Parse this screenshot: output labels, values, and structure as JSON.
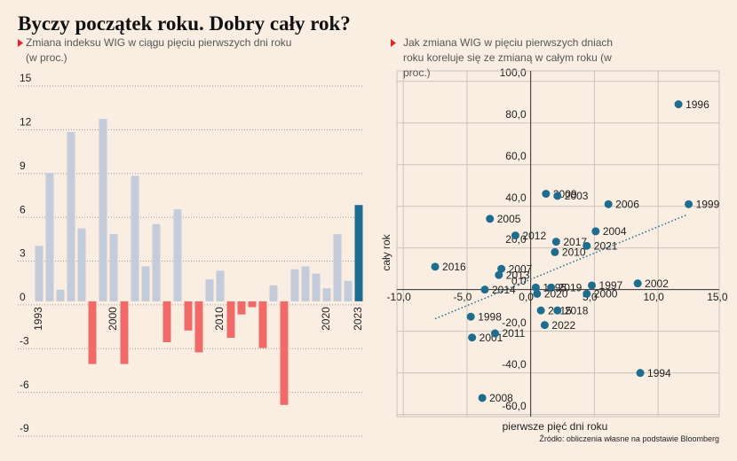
{
  "title": "Byczy początek roku. Dobry cały rok?",
  "source": "Źródło: obliczenia własne na podstawie Bloomberg",
  "chart_data": [
    {
      "type": "bar",
      "subtitle": "Zmiana indeksu WIG w ciągu pięciu pierwszych dni roku (w proc.)",
      "categories": [
        "1993",
        null,
        null,
        null,
        null,
        null,
        null,
        "2000",
        null,
        null,
        null,
        null,
        null,
        null,
        null,
        null,
        null,
        "2010",
        null,
        null,
        null,
        null,
        null,
        null,
        null,
        null,
        null,
        "2020",
        null,
        null,
        "2023"
      ],
      "values": [
        3.8,
        8.8,
        0.8,
        11.6,
        5.0,
        -4.3,
        12.5,
        4.6,
        -4.3,
        8.6,
        2.4,
        5.3,
        -2.8,
        6.3,
        -2.0,
        -3.5,
        1.5,
        2.1,
        -2.5,
        -0.9,
        -0.4,
        -3.2,
        1.1,
        -7.1,
        2.2,
        2.4,
        1.9,
        0.9,
        4.6,
        1.4,
        6.6
      ],
      "colors": [
        "#c4cbda",
        "#c4cbda",
        "#c4cbda",
        "#c4cbda",
        "#c4cbda",
        "#f06a68",
        "#c4cbda",
        "#c4cbda",
        "#f06a68",
        "#c4cbda",
        "#c4cbda",
        "#c4cbda",
        "#f06a68",
        "#c4cbda",
        "#f06a68",
        "#f06a68",
        "#c4cbda",
        "#c4cbda",
        "#f06a68",
        "#f06a68",
        "#f06a68",
        "#f06a68",
        "#c4cbda",
        "#f06a68",
        "#c4cbda",
        "#c4cbda",
        "#c4cbda",
        "#c4cbda",
        "#c4cbda",
        "#c4cbda",
        "#1d6d8f"
      ],
      "ylim": [
        -9,
        15
      ],
      "yticks": [
        15,
        12,
        9,
        6,
        3,
        0,
        -3,
        -6,
        -9
      ],
      "grid": true
    },
    {
      "type": "scatter",
      "subtitle": "Jak zmiana WIG w pięciu pierwszych dniach roku koreluje się ze zmianą w całym roku (w proc.)",
      "x_label": "pierwsze pięć dni roku",
      "y_label": "cały rok",
      "labels": [
        "1996",
        "1999",
        "2009",
        "2003",
        "2006",
        "2005",
        "2012",
        "2004",
        "2017",
        "2021",
        "2010",
        "2016",
        "2007",
        "2013",
        "1995",
        "2019",
        "1997",
        "2002",
        "2014",
        "2020",
        "2000",
        "1998",
        "2015",
        "2018",
        "2001",
        "2011",
        "2022",
        "1994",
        "2008"
      ],
      "x": [
        11.6,
        12.4,
        1.2,
        2.1,
        6.1,
        -3.2,
        -1.2,
        5.1,
        2.0,
        4.4,
        1.9,
        -7.5,
        -2.3,
        -2.5,
        0.4,
        1.6,
        4.8,
        8.4,
        -3.6,
        0.5,
        4.4,
        -4.7,
        0.8,
        2.1,
        -4.6,
        -2.8,
        1.1,
        8.6,
        -3.8
      ],
      "y": [
        89,
        41,
        46,
        45,
        41,
        34,
        26,
        28,
        23,
        21,
        18,
        11,
        10,
        7,
        1,
        1,
        2,
        3,
        0,
        -2,
        -2,
        -13,
        -10,
        -10,
        -23,
        -21,
        -17,
        -40,
        -52
      ],
      "color": "#1d6d8f",
      "trendline": {
        "x": [
          -7.5,
          12.3
        ],
        "y": [
          -14,
          36
        ]
      },
      "xlim": [
        -10.5,
        14.8
      ],
      "ylim": [
        -61,
        105
      ],
      "xticks": [
        {
          "value": -10,
          "label": "-10,0"
        },
        {
          "value": -5,
          "label": "-5,0"
        },
        {
          "value": 0,
          "label": "0,0"
        },
        {
          "value": 5,
          "label": "5,0"
        },
        {
          "value": 10,
          "label": "10,0"
        },
        {
          "value": 15,
          "label": "15,0"
        }
      ],
      "yticks": [
        {
          "value": 100,
          "label": "100,0"
        },
        {
          "value": 80,
          "label": "80,0"
        },
        {
          "value": 60,
          "label": "60,0"
        },
        {
          "value": 40,
          "label": "40,0"
        },
        {
          "value": 20,
          "label": "20,0"
        },
        {
          "value": 0,
          "label": "0,0"
        },
        {
          "value": -20,
          "label": "-20,0"
        },
        {
          "value": -40,
          "label": "-40,0"
        },
        {
          "value": -60,
          "label": "-60,0"
        }
      ],
      "grid": true
    }
  ]
}
